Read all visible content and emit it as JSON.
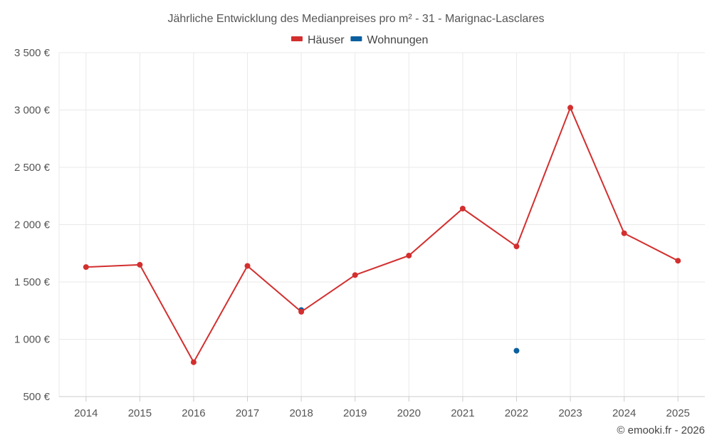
{
  "chart_data": {
    "type": "line",
    "title": "Jährliche Entwicklung des Medianpreises pro m² - 31 - Marignac-Lasclares",
    "categories": [
      "2014",
      "2015",
      "2016",
      "2017",
      "2018",
      "2019",
      "2020",
      "2021",
      "2022",
      "2023",
      "2024",
      "2025"
    ],
    "ylim": [
      500,
      3500
    ],
    "yticks": [
      500,
      1000,
      1500,
      2000,
      2500,
      3000,
      3500
    ],
    "ytick_labels": [
      "500 €",
      "1 000 €",
      "1 500 €",
      "2 000 €",
      "2 500 €",
      "3 000 €",
      "3 500 €"
    ],
    "series": [
      {
        "name": "Häuser",
        "color": "#d32f2f",
        "values": [
          1630,
          1650,
          800,
          1640,
          1240,
          1560,
          1730,
          2140,
          1810,
          3020,
          1925,
          1685
        ]
      },
      {
        "name": "Wohnungen",
        "color": "#0a5f9e",
        "values": [
          null,
          null,
          null,
          null,
          1255,
          null,
          null,
          null,
          900,
          null,
          null,
          null
        ]
      }
    ],
    "grid": true,
    "legend_position": "top-center",
    "credit": "© emooki.fr - 2026"
  }
}
